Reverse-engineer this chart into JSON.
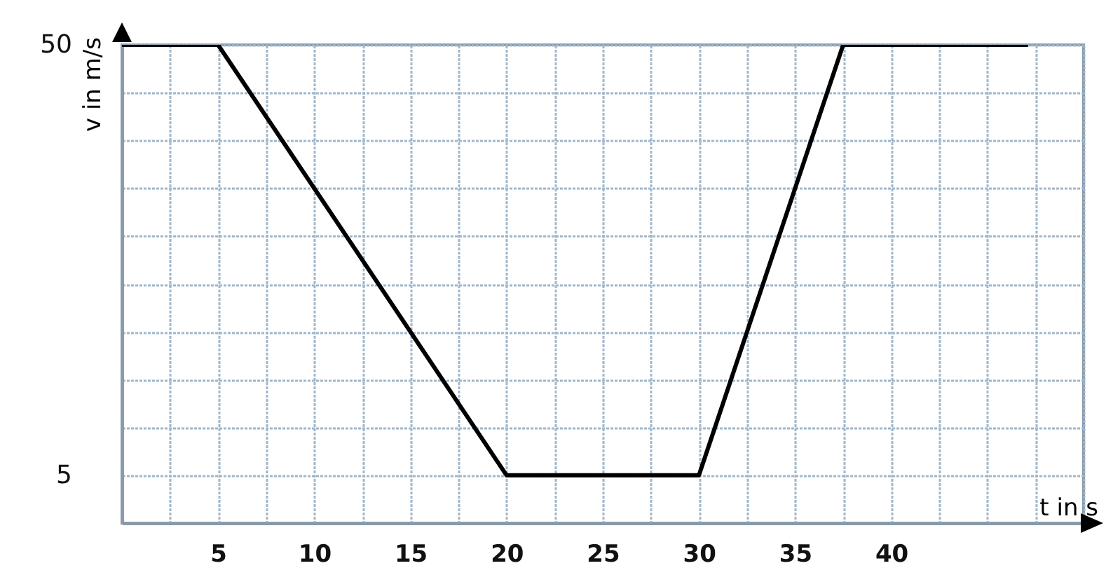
{
  "chart_data": {
    "type": "line",
    "xlabel": "t in s",
    "ylabel": "v in m/s",
    "x": [
      0,
      5,
      20,
      30,
      37.5,
      47
    ],
    "series": [
      {
        "color": "#000000",
        "values": [
          50,
          50,
          5,
          5,
          50,
          50
        ]
      }
    ],
    "xlim": [
      0,
      50
    ],
    "ylim": [
      0,
      50
    ],
    "xticks": [
      {
        "value": 0,
        "label": null
      },
      {
        "value": 2.5,
        "label": null
      },
      5,
      {
        "value": 7.5,
        "label": null
      },
      10,
      {
        "value": 12.5,
        "label": null
      },
      15,
      {
        "value": 17.5,
        "label": null
      },
      20,
      {
        "value": 22.5,
        "label": null
      },
      25,
      {
        "value": 27.5,
        "label": null
      },
      30,
      {
        "value": 32.5,
        "label": null
      },
      35,
      {
        "value": 37.5,
        "label": null
      },
      40,
      {
        "value": 42.5,
        "label": null
      },
      {
        "value": 45,
        "label": null
      },
      {
        "value": 47.5,
        "label": null
      },
      {
        "value": 50,
        "label": null
      }
    ],
    "yticks": [
      {
        "value": 0,
        "label": null
      },
      5,
      {
        "value": 10,
        "label": null
      },
      {
        "value": 15,
        "label": null
      },
      {
        "value": 20,
        "label": null
      },
      {
        "value": 25,
        "label": null
      },
      {
        "value": 30,
        "label": null
      },
      {
        "value": 35,
        "label": null
      },
      {
        "value": 40,
        "label": null
      },
      {
        "value": 45,
        "label": null
      },
      50
    ],
    "grid": true,
    "marker": "none",
    "line_style": "solid"
  }
}
